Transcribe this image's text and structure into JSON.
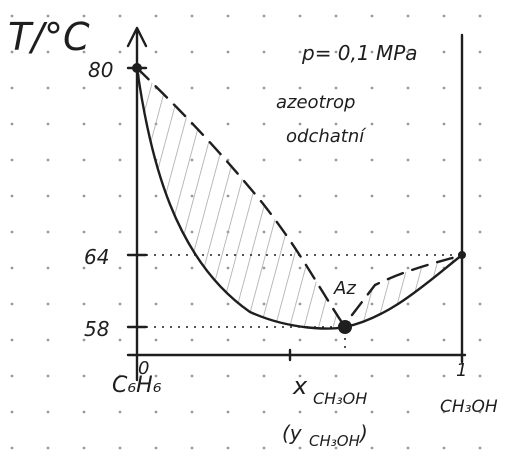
{
  "axes": {
    "y_label": "T/°C",
    "y_ticks": [
      "80",
      "64",
      "58"
    ],
    "x_ticks": [
      "0",
      "1"
    ],
    "x_label": "x",
    "x_label_sub": "CH₃OH",
    "x_label_alt": "(y",
    "x_label_alt_sub": "CH₃OH",
    "x_label_alt_end": ")"
  },
  "components": {
    "left": "C₆H₆",
    "right": "CH₃OH"
  },
  "annotations": {
    "pressure": "p= 0,1 MPa",
    "line1": "azeotrop",
    "line2": "odchatní",
    "point": "Az"
  }
}
